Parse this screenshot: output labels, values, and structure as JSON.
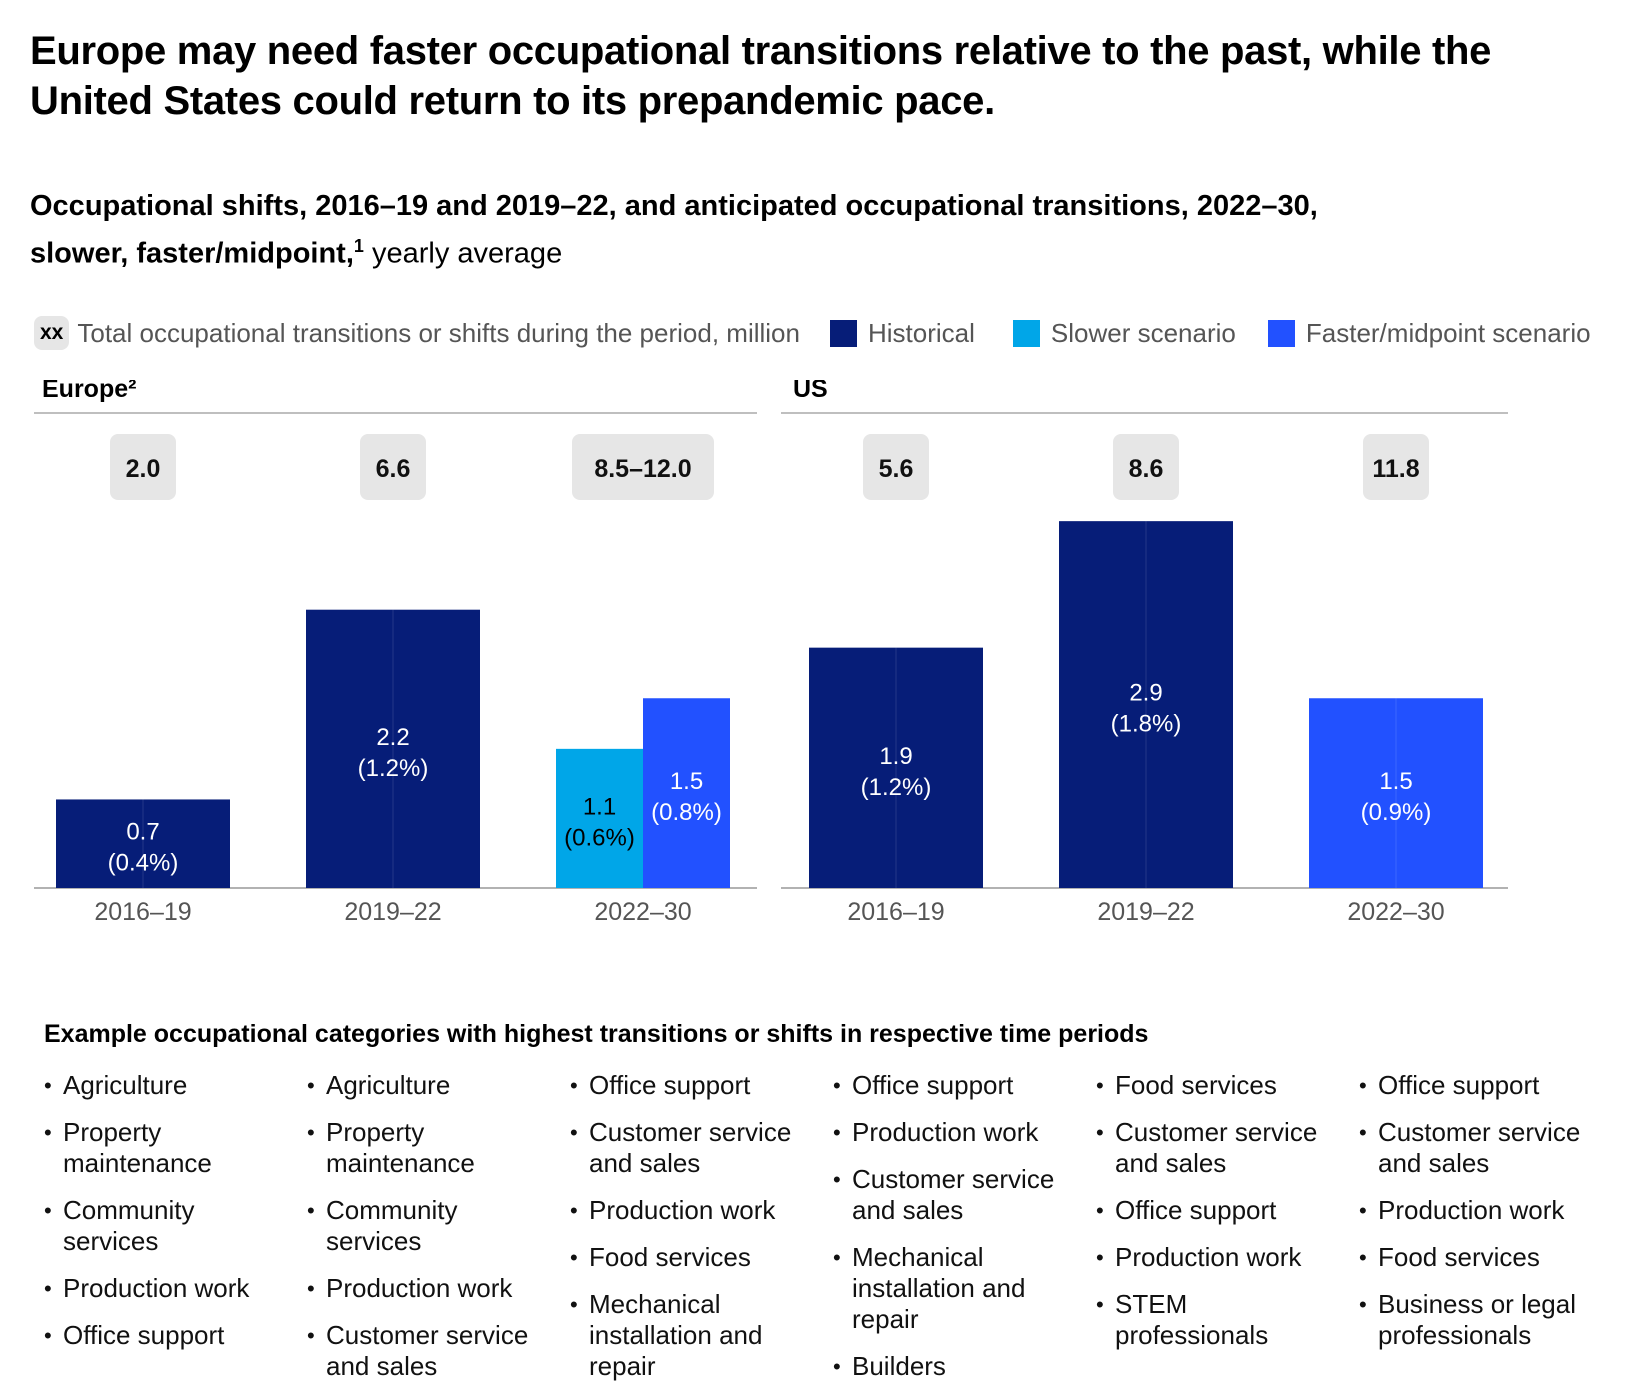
{
  "title": "Europe may need faster occupational transitions relative to the past, while the United States could return to its prepandemic pace.",
  "subtitle_bold": "Occupational shifts, 2016–19 and 2019–22, and anticipated occupational transitions, 2022–30, slower, faster/midpoint,",
  "subtitle_sup": "1",
  "subtitle_rest": " yearly average",
  "legend": {
    "total_marker": "xx",
    "total_label": "Total occupational transitions or shifts during the period, million",
    "historical": "Historical",
    "slower": "Slower scenario",
    "faster": "Faster/midpoint scenario"
  },
  "colors": {
    "historical": "#061d78",
    "slower": "#00a6e8",
    "faster": "#2251ff",
    "total_box": "#e6e6e6",
    "axis": "#999999"
  },
  "chart_data": [
    {
      "type": "bar",
      "panel": "Europe²",
      "categories": [
        "2016–19",
        "2019–22",
        "2022–30"
      ],
      "totals": [
        "2.0",
        "6.6",
        "8.5–12.0"
      ],
      "bars": [
        {
          "category": "2016–19",
          "series": "Historical",
          "value": 0.7,
          "label": "0.7",
          "share": "(0.4%)"
        },
        {
          "category": "2019–22",
          "series": "Historical",
          "value": 2.2,
          "label": "2.2",
          "share": "(1.2%)"
        },
        {
          "category": "2022–30",
          "series": "Slower scenario",
          "value": 1.1,
          "label": "1.1",
          "share": "(0.6%)"
        },
        {
          "category": "2022–30",
          "series": "Faster/midpoint scenario",
          "value": 1.5,
          "label": "1.5",
          "share": "(0.8%)"
        }
      ],
      "ylim": [
        0,
        3
      ]
    },
    {
      "type": "bar",
      "panel": "US",
      "categories": [
        "2016–19",
        "2019–22",
        "2022–30"
      ],
      "totals": [
        "5.6",
        "8.6",
        "11.8"
      ],
      "bars": [
        {
          "category": "2016–19",
          "series": "Historical",
          "value": 1.9,
          "label": "1.9",
          "share": "(1.2%)"
        },
        {
          "category": "2019–22",
          "series": "Historical",
          "value": 2.9,
          "label": "2.9",
          "share": "(1.8%)"
        },
        {
          "category": "2022–30",
          "series": "Faster/midpoint scenario",
          "value": 1.5,
          "label": "1.5",
          "share": "(0.9%)"
        }
      ],
      "ylim": [
        0,
        3
      ]
    }
  ],
  "categories_title": "Example occupational categories with highest transitions or shifts in respective time periods",
  "category_lists": [
    [
      "Agriculture",
      "Property maintenance",
      "Community services",
      "Production work",
      "Office support"
    ],
    [
      "Agriculture",
      "Property maintenance",
      "Community services",
      "Production work",
      "Customer service and sales"
    ],
    [
      "Office support",
      "Customer service and sales",
      "Production work",
      "Food services",
      "Mechanical installation and repair"
    ],
    [
      "Office support",
      "Production work",
      "Customer service and sales",
      "Mechanical installation and repair",
      "Builders"
    ],
    [
      "Food services",
      "Customer service and sales",
      "Office support",
      "Production work",
      "STEM professionals"
    ],
    [
      "Office support",
      "Customer service and sales",
      "Production work",
      "Food services",
      "Business or legal professionals"
    ]
  ]
}
